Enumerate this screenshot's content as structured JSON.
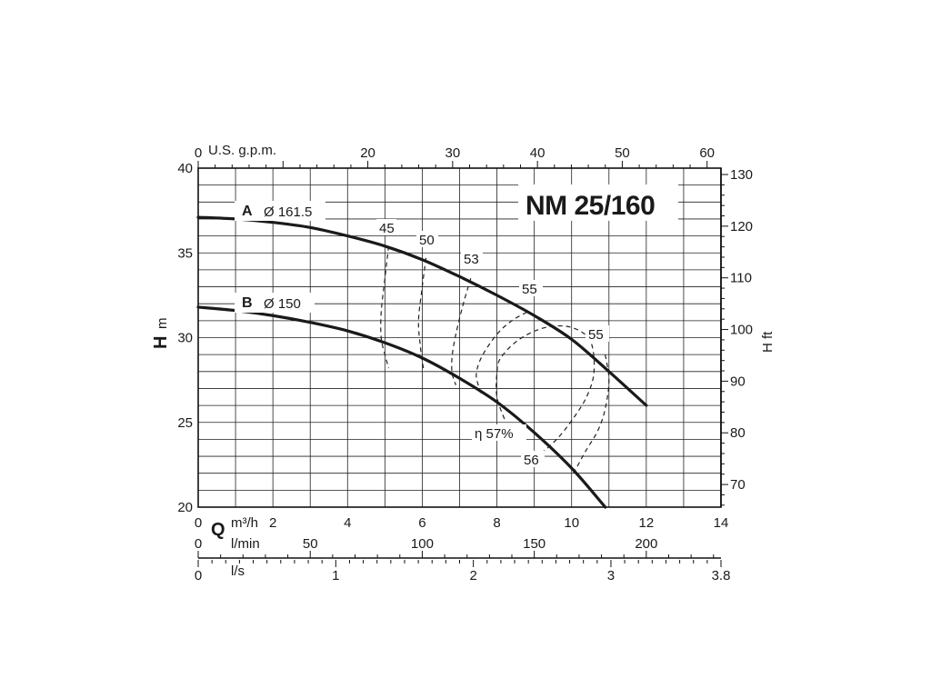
{
  "chart_data": {
    "type": "line",
    "title": "NM 25/160",
    "x_primary": {
      "unit": "m³/h",
      "axis_letter": "Q",
      "range": [
        0,
        14
      ],
      "ticks": [
        0,
        2,
        4,
        6,
        8,
        10,
        12,
        14
      ]
    },
    "x_lmin": {
      "unit": "l/min",
      "ticks": [
        0,
        50,
        100,
        150,
        200
      ]
    },
    "x_ls": {
      "unit": "l/s",
      "ticks": [
        0,
        1,
        2,
        3,
        3.8
      ]
    },
    "x_top": {
      "unit": "U.S. g.p.m.",
      "ticks": [
        0,
        20,
        30,
        40,
        50,
        60
      ]
    },
    "y_left": {
      "unit": "m",
      "axis_letter": "H",
      "range": [
        20,
        40
      ],
      "ticks": [
        20,
        25,
        30,
        35,
        40
      ]
    },
    "y_right": {
      "unit": "H ft",
      "ticks": [
        70,
        80,
        90,
        100,
        110,
        120,
        130
      ]
    },
    "grid": true,
    "series": [
      {
        "name": "Ø 161.5",
        "letter": "A",
        "x": [
          0,
          1,
          2,
          3,
          4,
          5,
          6,
          7,
          8,
          9,
          10,
          11,
          12
        ],
        "y": [
          37.1,
          37.0,
          36.8,
          36.5,
          36.0,
          35.4,
          34.6,
          33.6,
          32.5,
          31.3,
          29.9,
          28.0,
          26.0
        ]
      },
      {
        "name": "Ø 150",
        "letter": "B",
        "x": [
          0,
          1,
          2,
          3,
          4,
          5,
          6,
          7,
          8,
          9,
          10,
          10.9
        ],
        "y": [
          31.8,
          31.6,
          31.3,
          30.9,
          30.4,
          29.7,
          28.8,
          27.6,
          26.2,
          24.4,
          22.3,
          20.0
        ]
      }
    ],
    "efficiency_curves": [
      {
        "label": "45",
        "x": [
          5.1,
          5.0,
          4.9,
          4.9,
          5.0,
          5.1
        ],
        "y": [
          35.4,
          33.5,
          31.5,
          30.0,
          29.0,
          28.2
        ]
      },
      {
        "label": "50",
        "x": [
          6.1,
          6.0,
          5.9,
          5.95,
          6.0,
          6.05
        ],
        "y": [
          34.7,
          33.0,
          31.0,
          29.5,
          28.6,
          28.0
        ]
      },
      {
        "label": "53",
        "x": [
          7.3,
          7.1,
          6.9,
          6.8,
          6.8,
          6.9
        ],
        "y": [
          33.5,
          32.0,
          30.2,
          28.9,
          27.9,
          27.2
        ]
      },
      {
        "label": "55",
        "x": [
          8.8,
          8.4,
          8.0,
          7.6,
          7.45,
          7.5,
          7.6
        ],
        "y": [
          31.5,
          31.0,
          30.2,
          28.9,
          27.9,
          27.2,
          26.6
        ]
      },
      {
        "label": "55",
        "x": [
          10.9,
          11.0,
          10.9,
          10.7,
          10.4,
          10.2,
          10.0
        ],
        "y": [
          29.0,
          27.5,
          25.8,
          24.5,
          23.4,
          22.6,
          21.8
        ]
      },
      {
        "label": "56",
        "x": [
          8.2,
          8.0,
          8.0,
          8.1,
          8.6,
          9.3,
          10.0,
          10.5,
          10.6,
          10.4,
          10.0,
          9.6,
          9.2
        ],
        "y": [
          25.2,
          26.5,
          27.9,
          28.8,
          29.9,
          30.6,
          30.6,
          29.8,
          28.0,
          26.5,
          25.1,
          24.0,
          23.2
        ]
      }
    ],
    "annotations": [
      "η 57%",
      "56"
    ]
  },
  "labels": {
    "title": "NM 25/160",
    "curve_a_letter": "A",
    "curve_a_dia": "Ø 161.5",
    "curve_b_letter": "B",
    "curve_b_dia": "Ø 150",
    "eff_45": "45",
    "eff_50": "50",
    "eff_53": "53",
    "eff_55a": "55",
    "eff_55b": "55",
    "eff_56": "56",
    "eff_57": "η 57%",
    "top_unit": "U.S. g.p.m.",
    "left_letter": "H",
    "left_unit": "m",
    "right_unit": "H ft",
    "q_letter": "Q",
    "m3h_unit": "m³/h",
    "lmin_unit": "l/min",
    "ls_unit": "l/s"
  }
}
